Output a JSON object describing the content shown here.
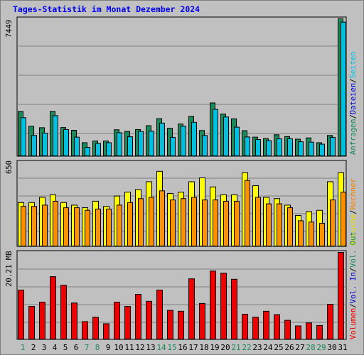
{
  "chart_data": [
    {
      "type": "bar",
      "title": "Tages-Statistik im Monat Dezember 2024",
      "categories": [
        "1",
        "2",
        "3",
        "4",
        "5",
        "6",
        "7",
        "8",
        "9",
        "10",
        "11",
        "12",
        "13",
        "14",
        "15",
        "16",
        "17",
        "18",
        "19",
        "20",
        "21",
        "22",
        "23",
        "24",
        "25",
        "26",
        "27",
        "28",
        "29",
        "30",
        "31"
      ],
      "weekend_days": [
        "1",
        "7",
        "8",
        "14",
        "15",
        "21",
        "22",
        "28",
        "29"
      ],
      "ymax_label": "7449",
      "ylim": [
        0,
        7449
      ],
      "legend": [
        {
          "name": "Anfragen",
          "color": "#1a8a5a"
        },
        {
          "name": "Dateien",
          "color": "#0000cc"
        },
        {
          "name": "Seiten",
          "color": "#00c0e0"
        }
      ],
      "separator": "/",
      "series": [
        {
          "name": "Anfragen",
          "color": "#1a8a5a",
          "values": [
            2440,
            1640,
            1560,
            2440,
            1570,
            1420,
            750,
            840,
            840,
            1450,
            1360,
            1460,
            1670,
            2050,
            1530,
            1760,
            2170,
            1410,
            2900,
            2300,
            2040,
            1400,
            1050,
            970,
            1180,
            1080,
            940,
            1010,
            750,
            1140,
            7449
          ]
        },
        {
          "name": "Dateien",
          "color": "#0000cc",
          "values": [
            2100,
            1140,
            1270,
            2210,
            1460,
            1050,
            500,
            710,
            750,
            1290,
            1070,
            1360,
            1370,
            1810,
            1040,
            1640,
            1850,
            1140,
            2550,
            2140,
            1590,
            1060,
            920,
            860,
            960,
            960,
            800,
            780,
            670,
            1040,
            7270
          ]
        },
        {
          "name": "Seiten",
          "color": "#00c0e0",
          "values": [
            2100,
            1140,
            1270,
            2210,
            1460,
            1050,
            500,
            710,
            750,
            1290,
            1070,
            1360,
            1370,
            1810,
            1040,
            1640,
            1850,
            1140,
            2550,
            2140,
            1590,
            1060,
            920,
            860,
            960,
            960,
            800,
            780,
            670,
            1040,
            7270
          ]
        }
      ]
    },
    {
      "type": "bar",
      "ymax_label": "650",
      "ylim": [
        0,
        650
      ],
      "legend": [
        {
          "name": "Besuche",
          "color": "#e0e000"
        },
        {
          "name": "Rechner",
          "color": "#f08000"
        }
      ],
      "separator": "/",
      "series": [
        {
          "name": "Besuche",
          "color": "#ffff00",
          "values": [
            340,
            340,
            380,
            400,
            340,
            320,
            300,
            350,
            310,
            390,
            420,
            440,
            500,
            580,
            410,
            420,
            500,
            530,
            460,
            400,
            400,
            570,
            470,
            380,
            370,
            320,
            240,
            270,
            280,
            500,
            570
          ]
        },
        {
          "name": "Rechner",
          "color": "#ff9000",
          "values": [
            310,
            310,
            320,
            350,
            300,
            300,
            280,
            290,
            290,
            320,
            340,
            370,
            380,
            430,
            360,
            370,
            380,
            360,
            360,
            350,
            350,
            510,
            380,
            330,
            330,
            300,
            200,
            190,
            180,
            360,
            420
          ]
        }
      ]
    },
    {
      "type": "bar",
      "ymax_label": "20.21 MB",
      "ylim": [
        0,
        20.21
      ],
      "legend": [
        {
          "name": "Volumen",
          "color": "#ee0000"
        },
        {
          "name": "Vol. In",
          "color": "#0000cc"
        },
        {
          "name": "Vol. Out",
          "color": "#1a8a5a"
        }
      ],
      "separator": "/",
      "series": [
        {
          "name": "Volumen",
          "color": "#ee0000",
          "values": [
            11.5,
            7.7,
            8.7,
            14.6,
            12.6,
            8.5,
            4.2,
            5.2,
            3.7,
            8.7,
            7.7,
            10.5,
            8.9,
            11.5,
            6.8,
            6.6,
            14.1,
            8.4,
            15.9,
            15.4,
            14.0,
            5.9,
            5.2,
            6.6,
            5.8,
            4.5,
            3.2,
            3.9,
            3.3,
            8.2,
            20.21
          ]
        }
      ]
    }
  ]
}
